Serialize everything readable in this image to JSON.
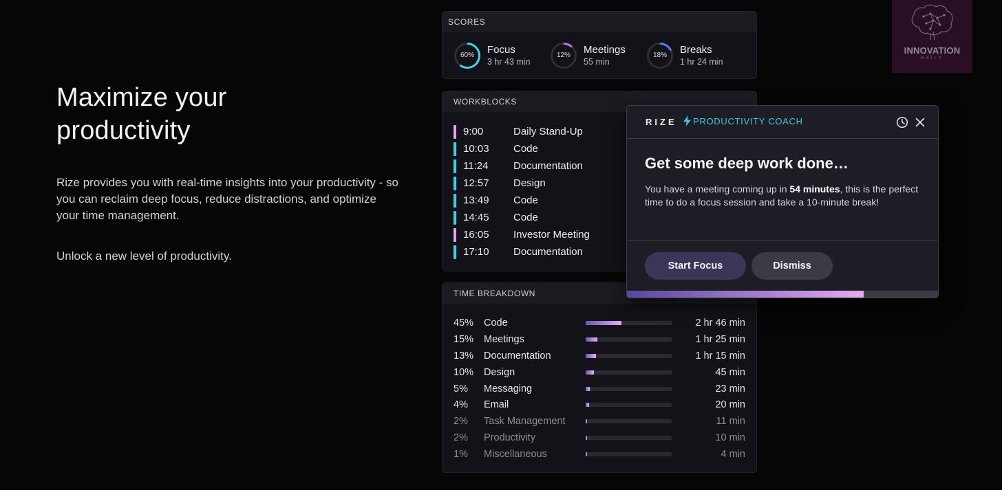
{
  "hero": {
    "title": "Maximize your productivity",
    "description": "Rize provides you with real-time insights into your productivity - so you can reclaim deep focus, reduce distractions, and optimize your time management.",
    "cta": "Unlock a new level of productivity."
  },
  "scores": {
    "heading": "SCORES",
    "items": [
      {
        "label": "Focus",
        "percent_text": "60%",
        "value": 0.6,
        "duration": "3 hr 43 min",
        "color": "#3fd6ea"
      },
      {
        "label": "Meetings",
        "percent_text": "12%",
        "value": 0.12,
        "duration": "55 min",
        "color": "#b07be0"
      },
      {
        "label": "Breaks",
        "percent_text": "18%",
        "value": 0.18,
        "duration": "1 hr 24 min",
        "color": "#4a86e8"
      }
    ]
  },
  "workblocks": {
    "heading": "WORKBLOCKS",
    "items": [
      {
        "time": "9:00",
        "name": "Daily Stand-Up",
        "color": "#e6a5f0"
      },
      {
        "time": "10:03",
        "name": "Code",
        "color": "#2fd3ea"
      },
      {
        "time": "11:24",
        "name": "Documentation",
        "color": "#2fd3ea"
      },
      {
        "time": "12:57",
        "name": "Design",
        "color": "#2fd3ea"
      },
      {
        "time": "13:49",
        "name": "Code",
        "color": "#2fd3ea"
      },
      {
        "time": "14:45",
        "name": "Code",
        "color": "#2fd3ea"
      },
      {
        "time": "16:05",
        "name": "Investor Meeting",
        "color": "#e6a5f0"
      },
      {
        "time": "17:10",
        "name": "Documentation",
        "color": "#2fd3ea"
      }
    ]
  },
  "breakdown": {
    "heading": "TIME BREAKDOWN",
    "items": [
      {
        "pct": "45%",
        "name": "Code",
        "fraction": 0.45,
        "duration": "2 hr 46 min"
      },
      {
        "pct": "15%",
        "name": "Meetings",
        "fraction": 0.15,
        "duration": "1 hr 25 min"
      },
      {
        "pct": "13%",
        "name": "Documentation",
        "fraction": 0.13,
        "duration": "1 hr 15 min"
      },
      {
        "pct": "10%",
        "name": "Design",
        "fraction": 0.1,
        "duration": "45 min"
      },
      {
        "pct": "5%",
        "name": "Messaging",
        "fraction": 0.05,
        "duration": "23 min"
      },
      {
        "pct": "4%",
        "name": "Email",
        "fraction": 0.04,
        "duration": "20 min"
      },
      {
        "pct": "2%",
        "name": "Task Management",
        "fraction": 0.02,
        "duration": "11 min"
      },
      {
        "pct": "2%",
        "name": "Productivity",
        "fraction": 0.02,
        "duration": "10 min"
      },
      {
        "pct": "1%",
        "name": "Miscellaneous",
        "fraction": 0.01,
        "duration": "4 min"
      }
    ]
  },
  "coach": {
    "brand": "RIZE",
    "tag": "PRODUCTIVITY COACH",
    "title": "Get some deep work done…",
    "message_before": "You have a meeting coming up in ",
    "message_bold": "54 minutes",
    "message_after": ", this is the perfect time to do a focus session and take a 10-minute break!",
    "start_label": "Start Focus",
    "dismiss_label": "Dismiss",
    "progress": 0.76,
    "accent": "#3fc6e0"
  },
  "watermark": {
    "word": "INNOVATION",
    "sub": "DAILY"
  }
}
